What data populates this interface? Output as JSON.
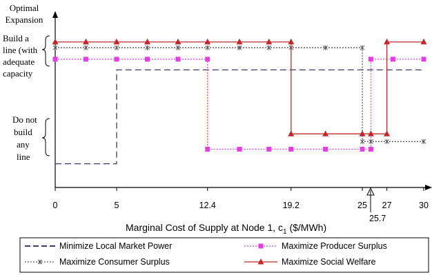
{
  "chart_data": {
    "type": "line",
    "title": "",
    "xlabel": "Marginal Cost of Supply at Node 1, c1 ($/MWh)",
    "xlabel_main": "Marginal Cost of Supply at Node 1, c",
    "xlabel_sub": "1",
    "xlabel_tail": " ($/MWh)",
    "ylabel_lines": [
      "Optimal",
      "Expansion"
    ],
    "y_categories": [
      {
        "key": "build",
        "lines": [
          "Build a",
          "line (with",
          "adequate",
          "capacity"
        ]
      },
      {
        "key": "none",
        "lines": [
          "Do not",
          "build",
          "any",
          "line"
        ]
      }
    ],
    "xticks": [
      0,
      5,
      12.4,
      19.2,
      25,
      27,
      30
    ],
    "xtick_labels": [
      "0",
      "5",
      "12.4",
      "19.2",
      "25",
      "27",
      "30"
    ],
    "xlim": [
      0,
      30
    ],
    "annotation": {
      "x": 25.7,
      "label": "25.7"
    },
    "grid": false,
    "legend_position": "bottom",
    "series": [
      {
        "name": "Minimize Local Market Power",
        "color": "#3a3a6a",
        "style": "dashed",
        "marker": "none",
        "x": [
          0,
          5,
          5,
          30
        ],
        "y": [
          0.62,
          0.62,
          3.07,
          3.07
        ]
      },
      {
        "name": "Maximize Producer Surplus",
        "color": "#e040e0",
        "style": "dotted",
        "marker": "square",
        "x": [
          0,
          2.5,
          5,
          7.5,
          10,
          12.4,
          12.4,
          15,
          17.4,
          19.2,
          22,
          25,
          25.7,
          25.7,
          27.5,
          30
        ],
        "y": [
          3.35,
          3.35,
          3.35,
          3.35,
          3.35,
          3.35,
          1.0,
          1.0,
          1.0,
          1.0,
          1.0,
          1.0,
          1.0,
          3.35,
          3.35,
          3.35
        ]
      },
      {
        "name": "Maximize Consumer Surplus",
        "color": "#555555",
        "style": "dotted",
        "marker": "star",
        "x": [
          0,
          2.5,
          5,
          7.5,
          10,
          12.4,
          15,
          17.4,
          19.2,
          22,
          25,
          25,
          25.7,
          27,
          30
        ],
        "y": [
          3.65,
          3.65,
          3.65,
          3.65,
          3.65,
          3.65,
          3.65,
          3.65,
          3.65,
          3.65,
          3.65,
          1.2,
          1.2,
          1.2,
          1.2
        ]
      },
      {
        "name": "Maximize Social Welfare",
        "color": "#c0282c",
        "style": "solid",
        "marker": "triangle",
        "x": [
          0,
          2.5,
          5,
          7.5,
          10,
          12.4,
          15,
          17.4,
          19.2,
          19.2,
          22,
          25,
          25.7,
          27,
          27,
          30
        ],
        "y": [
          3.8,
          3.8,
          3.8,
          3.8,
          3.8,
          3.8,
          3.8,
          3.8,
          3.8,
          1.4,
          1.4,
          1.4,
          1.4,
          1.4,
          3.8,
          3.8
        ]
      }
    ]
  }
}
